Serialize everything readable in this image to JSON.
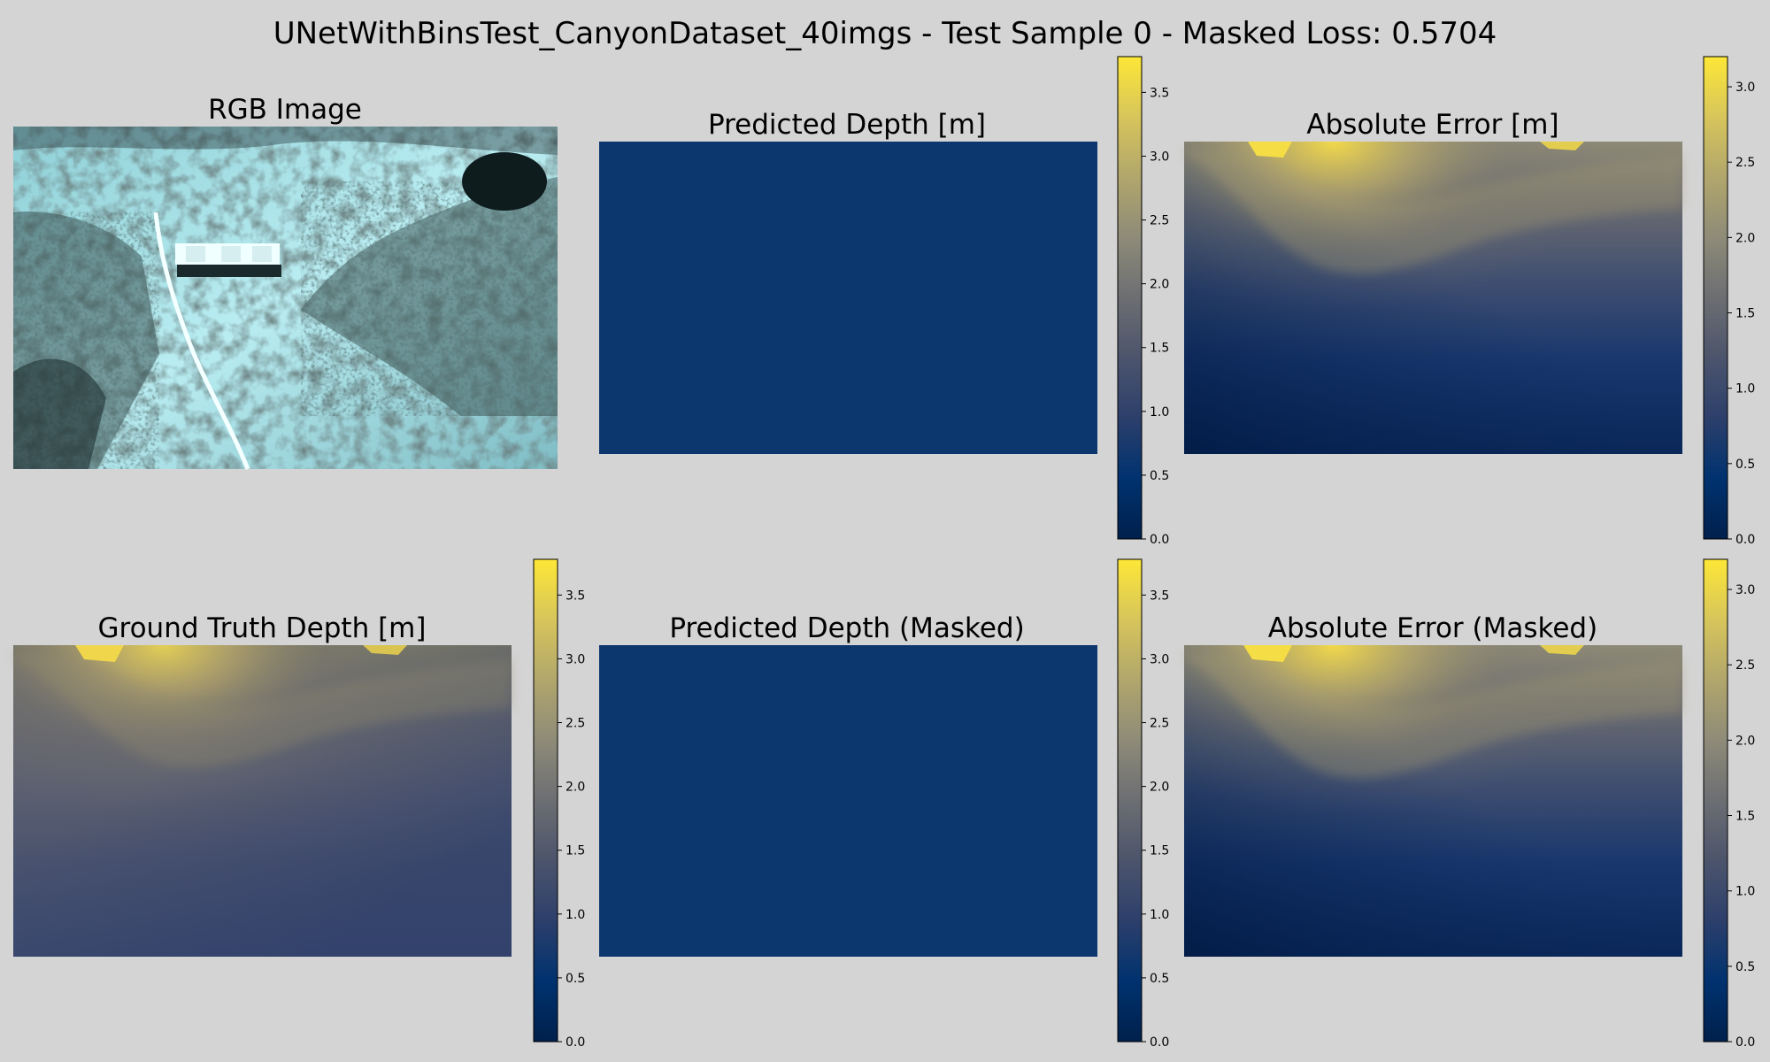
{
  "figure": {
    "suptitle": "UNetWithBinsTest_CanyonDataset_40imgs - Test Sample 0 - Masked Loss: 0.5704",
    "background": "#d4d4d4"
  },
  "colormap": {
    "name": "cividis",
    "stops": [
      "#00204c",
      "#00326f",
      "#2c3f6b",
      "#4c546c",
      "#6c6e72",
      "#8e8b78",
      "#b1a66c",
      "#d7c55b",
      "#fde737"
    ]
  },
  "panels": [
    {
      "id": "rgb",
      "title": "RGB Image",
      "kind": "rgb"
    },
    {
      "id": "pred",
      "title": "Predicted Depth [m]",
      "kind": "pred",
      "colorbar": {
        "min": 0,
        "max": 3.78,
        "ticks": [
          0.0,
          0.5,
          1.0,
          1.5,
          2.0,
          2.5,
          3.0,
          3.5
        ]
      }
    },
    {
      "id": "err",
      "title": "Absolute Error [m]",
      "kind": "err",
      "colorbar": {
        "min": 0,
        "max": 3.2,
        "ticks": [
          0.0,
          0.5,
          1.0,
          1.5,
          2.0,
          2.5,
          3.0
        ]
      }
    },
    {
      "id": "gt",
      "title": "Ground Truth Depth [m]",
      "kind": "gt",
      "colorbar": {
        "min": 0,
        "max": 3.78,
        "ticks": [
          0.0,
          0.5,
          1.0,
          1.5,
          2.0,
          2.5,
          3.0,
          3.5
        ]
      }
    },
    {
      "id": "pred_masked",
      "title": "Predicted Depth (Masked)",
      "kind": "pred",
      "colorbar": {
        "min": 0,
        "max": 3.78,
        "ticks": [
          0.0,
          0.5,
          1.0,
          1.5,
          2.0,
          2.5,
          3.0,
          3.5
        ]
      }
    },
    {
      "id": "err_masked",
      "title": "Absolute Error (Masked)",
      "kind": "err",
      "colorbar": {
        "min": 0,
        "max": 3.2,
        "ticks": [
          0.0,
          0.5,
          1.0,
          1.5,
          2.0,
          2.5,
          3.0
        ]
      }
    }
  ],
  "chart_data": {
    "type": "heatmap",
    "title": "UNetWithBinsTest_CanyonDataset_40imgs - Test Sample 0 - Masked Loss: 0.5704",
    "masked_loss": 0.5704,
    "colormap": "cividis",
    "predicted_depth_value": 0.6,
    "ground_truth_depth_range": [
      0.6,
      3.3
    ],
    "depth_colorbar_range": [
      0,
      3.78
    ],
    "error_colorbar_range": [
      0,
      3.2
    ],
    "depth_colorbar_ticks": [
      0.0,
      0.5,
      1.0,
      1.5,
      2.0,
      2.5,
      3.0,
      3.5
    ],
    "error_colorbar_ticks": [
      0.0,
      0.5,
      1.0,
      1.5,
      2.0,
      2.5,
      3.0
    ]
  }
}
